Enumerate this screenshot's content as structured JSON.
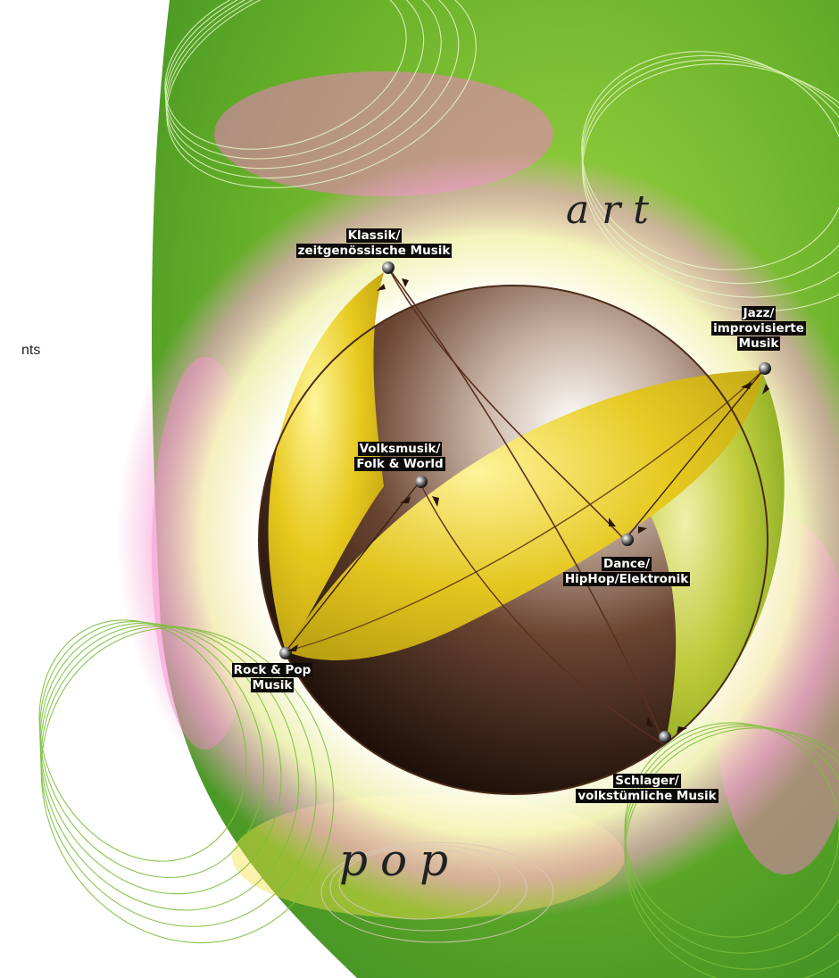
{
  "left_fragment": "nts",
  "axis": {
    "top": "art",
    "bottom": "pop"
  },
  "genres": {
    "klassik": [
      "Klassik/",
      "zeitgenössische Musik"
    ],
    "jazz": [
      "Jazz/",
      "improvisierte",
      "Musik"
    ],
    "volk": [
      "Volksmusik/",
      "Folk & World"
    ],
    "dance": [
      "Dance/",
      "HipHop/Elektronik"
    ],
    "rock": [
      "Rock & Pop",
      "Musik"
    ],
    "schlager": [
      "Schlager/",
      "volkstümliche Musik"
    ]
  },
  "colors": {
    "green": "#6fb52a",
    "pink": "#ee6fb8",
    "yellow": "#e3c21a",
    "brown": "#3b2316",
    "label_bg": "#0d0a08"
  }
}
